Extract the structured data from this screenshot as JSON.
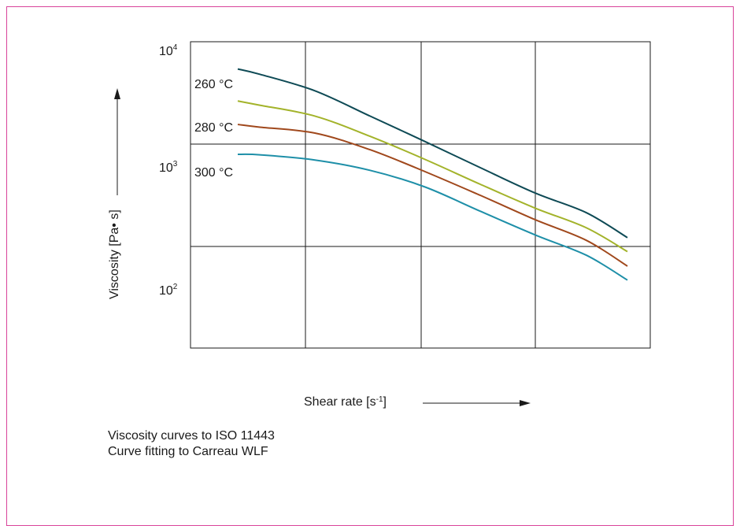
{
  "chart_data": {
    "type": "line",
    "y_scale": "log",
    "grid": true,
    "ylabel": "Viscosity [Pa• s]",
    "xlabel_text": "Shear rate [s",
    "xlabel_sup": "-1",
    "xlabel_close": "]",
    "y_ticks": [
      {
        "base": "10",
        "exp": "4"
      },
      {
        "base": "10",
        "exp": "3"
      },
      {
        "base": "10",
        "exp": "2"
      }
    ],
    "series": [
      {
        "name": "260 °C",
        "color": "#0e4a55",
        "values": [
          5800,
          5200,
          3700,
          2200,
          1300,
          760,
          450,
          300,
          180
        ]
      },
      {
        "name": "",
        "color": "#a3b32a",
        "values": [
          3000,
          2750,
          2200,
          1450,
          900,
          540,
          330,
          220,
          135
        ]
      },
      {
        "name": "280 °C",
        "color": "#a0481c",
        "values": [
          1850,
          1750,
          1550,
          1100,
          700,
          430,
          260,
          170,
          100
        ]
      },
      {
        "name": "300 °C",
        "color": "#1e8fa8",
        "values": [
          1000,
          990,
          890,
          720,
          510,
          310,
          190,
          125,
          75
        ]
      }
    ],
    "labeled_series": [
      "260 °C",
      "280 °C",
      "300 °C"
    ]
  },
  "captions": {
    "line1": "Viscosity curves to ISO 11443",
    "line2": "Curve fitting to Carreau WLF"
  },
  "colors": {
    "frame": "#d9449a",
    "grid": "#1a1a1a"
  }
}
